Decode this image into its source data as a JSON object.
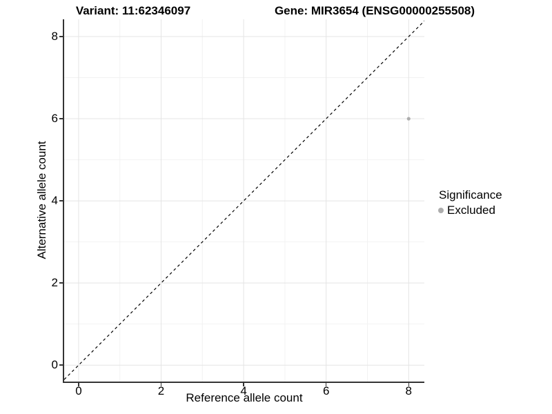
{
  "chart_data": {
    "type": "scatter",
    "title_left": "Variant: 11:62346097",
    "title_right": "Gene: MIR3654 (ENSG00000255508)",
    "xlabel": "Reference allele count",
    "ylabel": "Alternative allele count",
    "xlim": [
      -0.35,
      8.38
    ],
    "ylim": [
      -0.4,
      8.42
    ],
    "x_ticks": [
      0,
      2,
      4,
      6,
      8
    ],
    "y_ticks": [
      0,
      2,
      4,
      6,
      8
    ],
    "x_minor_ticks": [
      1,
      3,
      5,
      7
    ],
    "y_minor_ticks": [
      1,
      3,
      5,
      7
    ],
    "grid": true,
    "series": [
      {
        "name": "Excluded",
        "color": "#adadad",
        "points": [
          {
            "x": 8,
            "y": 6
          }
        ]
      }
    ],
    "identity_line": {
      "style": "dashed",
      "color": "#000000",
      "from": [
        -0.35,
        -0.35
      ],
      "to": [
        8.42,
        8.42
      ]
    },
    "legend": {
      "position": "right",
      "title": "Significance",
      "items": [
        {
          "label": "Excluded",
          "color": "#adadad"
        }
      ]
    },
    "colors": {
      "axis_line": "#333333",
      "grid_major": "#e4e4e4",
      "grid_minor": "#f2f2f2",
      "text": "#000000",
      "point": "#adadad",
      "background": "#ffffff"
    }
  }
}
